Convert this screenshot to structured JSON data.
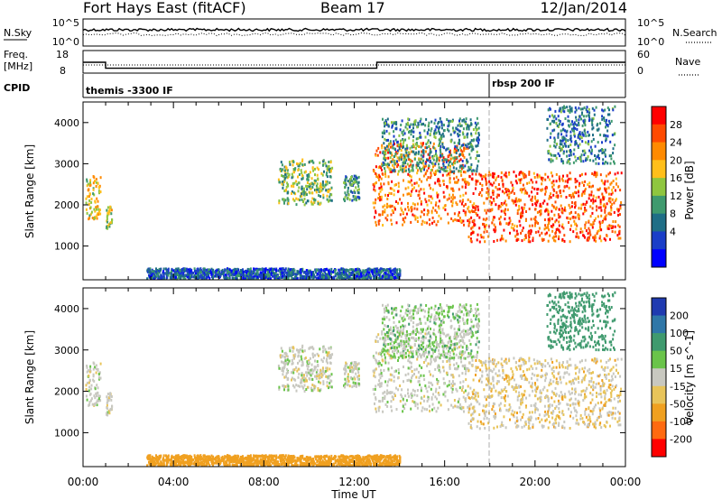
{
  "header": {
    "station": "Fort Hays East (fitACF)",
    "beam": "Beam 17",
    "date": "12/Jan/2014"
  },
  "panels": {
    "nsky_label": "N.Sky",
    "nsky_ticks": [
      "10^5",
      "10^0"
    ],
    "nsearch_label": "N.Search",
    "nsearch_ticks": [
      "10^5",
      "10^0"
    ],
    "freq_label": "Freq.",
    "freq_unit": "[MHz]",
    "freq_ticks": [
      "18",
      "8"
    ],
    "nave_label": "Nave",
    "nave_ticks": [
      "60",
      "0"
    ],
    "cpid_label": "CPID",
    "cpid_events": [
      {
        "time_h": 0.0,
        "label": "themis -3300 IF"
      },
      {
        "time_h": 18.0,
        "label": "rbsp 200 IF"
      }
    ]
  },
  "chart_data": {
    "type": "heatmap",
    "x_label": "Time UT",
    "x_ticks": [
      "00:00",
      "04:00",
      "08:00",
      "12:00",
      "16:00",
      "20:00",
      "00:00"
    ],
    "x_range_hours": [
      0,
      24
    ],
    "y_label": "Slant Range [km]",
    "y_range_km": [
      180,
      4500
    ],
    "y_ticks": [
      "1000",
      "2000",
      "3000",
      "4000"
    ],
    "frequency_mhz": [
      {
        "from_h": 0.0,
        "to_h": 1.0,
        "value": 13.0
      },
      {
        "from_h": 1.0,
        "to_h": 13.0,
        "value": 10.0
      },
      {
        "from_h": 13.0,
        "to_h": 24.0,
        "value": 13.0
      }
    ],
    "power_panel": {
      "colorbar_label": "Power [dB]",
      "colorbar_ticks": [
        "28",
        "24",
        "20",
        "16",
        "12",
        "8",
        "4"
      ],
      "colorbar_colors": [
        "#ff0000",
        "#ff4a00",
        "#ff8a00",
        "#ffbf1a",
        "#8fc63f",
        "#3f9a6e",
        "#1f6e86",
        "#1a3ec8",
        "#0000ff"
      ]
    },
    "velocity_panel": {
      "colorbar_label": "Velocity [m s^-1]",
      "colorbar_ticks": [
        "200",
        "100",
        "50",
        "15",
        "-15",
        "-50",
        "-100",
        "-200"
      ],
      "colorbar_colors": [
        "#1f3ab0",
        "#2f77a8",
        "#3f9a6e",
        "#6ac44a",
        "#c8c8c0",
        "#e8c45a",
        "#f0a020",
        "#ff6a10",
        "#ff0000"
      ]
    },
    "echo_regions": [
      {
        "t0": 0.1,
        "t1": 0.75,
        "r0": 1650,
        "r1": 2700,
        "power_db": 18,
        "velocity": 0
      },
      {
        "t0": 1.0,
        "t1": 1.25,
        "r0": 1400,
        "r1": 2000,
        "power_db": 16,
        "velocity": 0
      },
      {
        "t0": 8.6,
        "t1": 11.0,
        "r0": 2000,
        "r1": 3100,
        "power_db": 14,
        "velocity": 0
      },
      {
        "t0": 11.5,
        "t1": 12.2,
        "r0": 2100,
        "r1": 2700,
        "power_db": 10,
        "velocity": 0
      },
      {
        "t0": 12.8,
        "t1": 17.0,
        "r0": 1500,
        "r1": 3500,
        "power_db": 24,
        "velocity": 0
      },
      {
        "t0": 17.0,
        "t1": 23.8,
        "r0": 1100,
        "r1": 2800,
        "power_db": 26,
        "velocity": -15
      },
      {
        "t0": 13.2,
        "t1": 17.5,
        "r0": 2800,
        "r1": 4100,
        "power_db": 10,
        "velocity": 15
      },
      {
        "t0": 20.5,
        "t1": 23.5,
        "r0": 3000,
        "r1": 4400,
        "power_db": 8,
        "velocity": 50
      },
      {
        "t0": 2.8,
        "t1": 14.0,
        "r0": 200,
        "r1": 450,
        "power_db": 6,
        "velocity": -50
      }
    ],
    "grid": false
  }
}
